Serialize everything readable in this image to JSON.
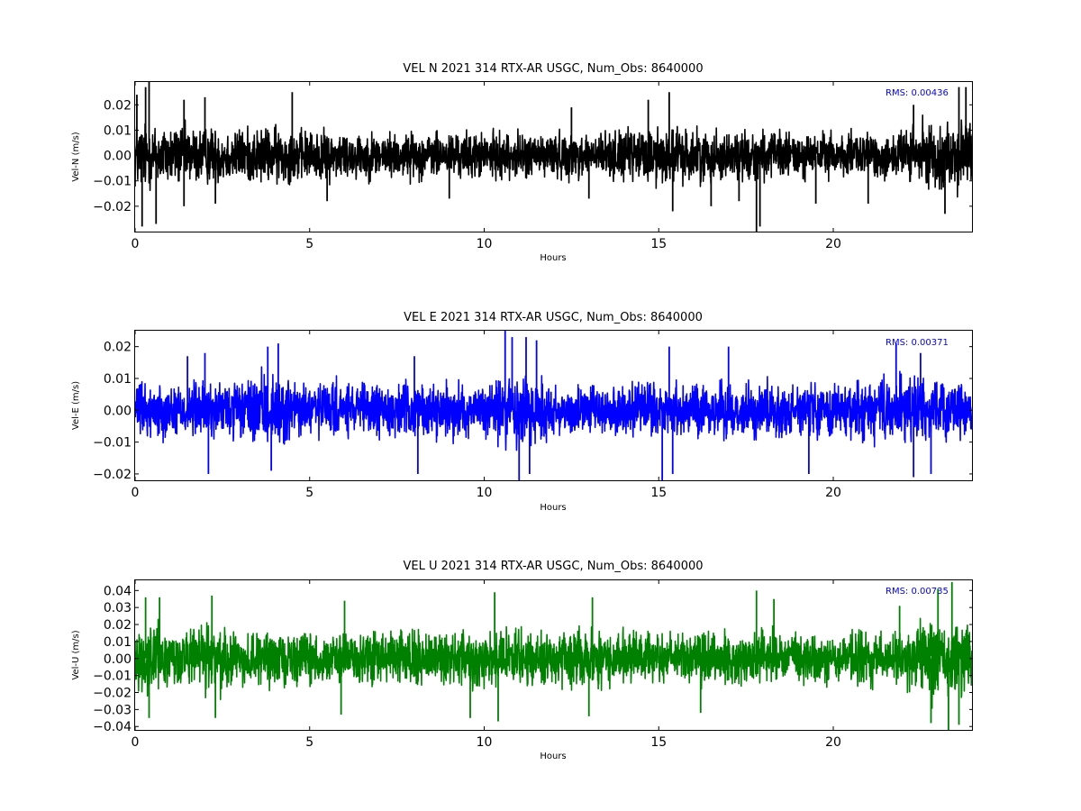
{
  "chart_data": [
    {
      "type": "line",
      "title": "VEL N 2021 314 RTX-AR  USGC, Num_Obs: 8640000",
      "xlabel": "Hours",
      "ylabel": "Vel-N (m/s)",
      "xlim": [
        0,
        24
      ],
      "ylim": [
        -0.03,
        0.029
      ],
      "xticks": [
        0,
        5,
        10,
        15,
        20
      ],
      "xtick_labels": [
        "0",
        "5",
        "10",
        "15",
        "20"
      ],
      "yticks": [
        -0.02,
        -0.01,
        0.0,
        0.01,
        0.02
      ],
      "ytick_labels": [
        "−0.02",
        "−0.01",
        "0.00",
        "0.01",
        "0.02"
      ],
      "annotation": "RMS:  0.00436",
      "annotation_color": "#0000ff",
      "grid": false,
      "legend": "none",
      "series": [
        {
          "color": "#000000",
          "envelope": [
            [
              0.0,
              0.019
            ],
            [
              0.5,
              0.017
            ],
            [
              1.0,
              0.016
            ],
            [
              2.0,
              0.015
            ],
            [
              3.0,
              0.014
            ],
            [
              4.0,
              0.015
            ],
            [
              5.0,
              0.013
            ],
            [
              6.0,
              0.013
            ],
            [
              7.0,
              0.012
            ],
            [
              8.0,
              0.012
            ],
            [
              9.0,
              0.012
            ],
            [
              10.0,
              0.012
            ],
            [
              11.0,
              0.012
            ],
            [
              12.0,
              0.012
            ],
            [
              13.0,
              0.012
            ],
            [
              14.0,
              0.013
            ],
            [
              15.0,
              0.016
            ],
            [
              16.0,
              0.014
            ],
            [
              17.0,
              0.013
            ],
            [
              18.0,
              0.013
            ],
            [
              19.0,
              0.012
            ],
            [
              20.0,
              0.012
            ],
            [
              21.0,
              0.012
            ],
            [
              22.0,
              0.014
            ],
            [
              23.0,
              0.017
            ],
            [
              24.0,
              0.019
            ]
          ],
          "peaks": [
            [
              0.05,
              0.024
            ],
            [
              0.2,
              -0.028
            ],
            [
              0.3,
              0.027
            ],
            [
              0.4,
              0.029
            ],
            [
              0.6,
              -0.027
            ],
            [
              1.4,
              0.022
            ],
            [
              1.4,
              -0.02
            ],
            [
              2.0,
              0.023
            ],
            [
              2.3,
              -0.019
            ],
            [
              4.5,
              0.025
            ],
            [
              5.5,
              -0.018
            ],
            [
              9.0,
              -0.017
            ],
            [
              12.5,
              0.019
            ],
            [
              13.0,
              -0.017
            ],
            [
              14.7,
              0.022
            ],
            [
              15.3,
              0.025
            ],
            [
              15.4,
              -0.022
            ],
            [
              16.5,
              -0.02
            ],
            [
              17.8,
              -0.03
            ],
            [
              17.9,
              -0.028
            ],
            [
              17.3,
              -0.018
            ],
            [
              19.5,
              -0.019
            ],
            [
              21.0,
              -0.019
            ],
            [
              22.3,
              0.02
            ],
            [
              23.2,
              -0.023
            ],
            [
              23.6,
              0.027
            ],
            [
              23.8,
              0.027
            ]
          ]
        }
      ]
    },
    {
      "type": "line",
      "title": "VEL E 2021 314 RTX-AR  USGC, Num_Obs: 8640000",
      "xlabel": "Hours",
      "ylabel": "Vel-E (m/s)",
      "xlim": [
        0,
        24
      ],
      "ylim": [
        -0.022,
        0.025
      ],
      "xticks": [
        0,
        5,
        10,
        15,
        20
      ],
      "xtick_labels": [
        "0",
        "5",
        "10",
        "15",
        "20"
      ],
      "yticks": [
        -0.02,
        -0.01,
        0.0,
        0.01,
        0.02
      ],
      "ytick_labels": [
        "−0.02",
        "−0.01",
        "0.00",
        "0.01",
        "0.02"
      ],
      "annotation": "RMS:  0.00371",
      "annotation_color": "#0000ff",
      "grid": false,
      "legend": "none",
      "series": [
        {
          "color": "#0000ff",
          "envelope": [
            [
              0.0,
              0.011
            ],
            [
              1.0,
              0.011
            ],
            [
              2.0,
              0.012
            ],
            [
              3.0,
              0.012
            ],
            [
              3.5,
              0.014
            ],
            [
              4.0,
              0.015
            ],
            [
              4.5,
              0.013
            ],
            [
              5.0,
              0.012
            ],
            [
              6.0,
              0.011
            ],
            [
              7.0,
              0.011
            ],
            [
              8.0,
              0.011
            ],
            [
              9.0,
              0.011
            ],
            [
              10.0,
              0.011
            ],
            [
              10.5,
              0.015
            ],
            [
              11.0,
              0.018
            ],
            [
              11.5,
              0.016
            ],
            [
              12.0,
              0.012
            ],
            [
              13.0,
              0.01
            ],
            [
              14.0,
              0.011
            ],
            [
              15.0,
              0.012
            ],
            [
              16.0,
              0.011
            ],
            [
              17.0,
              0.011
            ],
            [
              18.0,
              0.011
            ],
            [
              19.0,
              0.011
            ],
            [
              20.0,
              0.011
            ],
            [
              21.0,
              0.012
            ],
            [
              22.0,
              0.014
            ],
            [
              22.5,
              0.014
            ],
            [
              23.0,
              0.012
            ],
            [
              24.0,
              0.012
            ]
          ],
          "peaks": [
            [
              1.5,
              0.017
            ],
            [
              2.0,
              0.018
            ],
            [
              2.1,
              -0.02
            ],
            [
              3.8,
              0.02
            ],
            [
              4.1,
              0.021
            ],
            [
              3.9,
              -0.019
            ],
            [
              8.0,
              0.017
            ],
            [
              8.1,
              -0.02
            ],
            [
              10.6,
              0.025
            ],
            [
              10.8,
              0.023
            ],
            [
              11.0,
              -0.022
            ],
            [
              11.2,
              0.023
            ],
            [
              11.5,
              0.022
            ],
            [
              11.3,
              -0.02
            ],
            [
              15.3,
              0.02
            ],
            [
              15.4,
              -0.02
            ],
            [
              15.1,
              -0.022
            ],
            [
              17.0,
              0.02
            ],
            [
              19.3,
              -0.02
            ],
            [
              21.8,
              0.021
            ],
            [
              22.3,
              -0.021
            ],
            [
              22.5,
              0.018
            ],
            [
              22.8,
              -0.02
            ]
          ]
        }
      ]
    },
    {
      "type": "line",
      "title": "VEL U 2021 314 RTX-AR  USGC, Num_Obs: 8640000",
      "xlabel": "Hours",
      "ylabel": "Vel-U (m/s)",
      "xlim": [
        0,
        24
      ],
      "ylim": [
        -0.042,
        0.046
      ],
      "xticks": [
        0,
        5,
        10,
        15,
        20
      ],
      "xtick_labels": [
        "0",
        "5",
        "10",
        "15",
        "20"
      ],
      "yticks": [
        -0.04,
        -0.03,
        -0.02,
        -0.01,
        0.0,
        0.01,
        0.02,
        0.03,
        0.04
      ],
      "ytick_labels": [
        "−0.04",
        "−0.03",
        "−0.02",
        "−0.01",
        "0.00",
        "0.01",
        "0.02",
        "0.03",
        "0.04"
      ],
      "annotation": "RMS:  0.00735",
      "annotation_color": "#0000ff",
      "grid": false,
      "legend": "none",
      "series": [
        {
          "color": "#008000",
          "envelope": [
            [
              0.0,
              0.022
            ],
            [
              0.5,
              0.026
            ],
            [
              1.0,
              0.025
            ],
            [
              1.5,
              0.022
            ],
            [
              2.0,
              0.024
            ],
            [
              2.3,
              0.03
            ],
            [
              2.7,
              0.024
            ],
            [
              3.0,
              0.019
            ],
            [
              4.0,
              0.02
            ],
            [
              5.0,
              0.019
            ],
            [
              6.0,
              0.019
            ],
            [
              7.0,
              0.02
            ],
            [
              8.0,
              0.02
            ],
            [
              9.0,
              0.02
            ],
            [
              10.0,
              0.022
            ],
            [
              11.0,
              0.021
            ],
            [
              12.0,
              0.021
            ],
            [
              13.0,
              0.022
            ],
            [
              14.0,
              0.02
            ],
            [
              15.0,
              0.02
            ],
            [
              16.0,
              0.021
            ],
            [
              17.0,
              0.019
            ],
            [
              18.0,
              0.02
            ],
            [
              19.0,
              0.022
            ],
            [
              20.0,
              0.02
            ],
            [
              21.0,
              0.021
            ],
            [
              22.0,
              0.021
            ],
            [
              22.5,
              0.03
            ],
            [
              23.0,
              0.031
            ],
            [
              23.5,
              0.03
            ],
            [
              24.0,
              0.024
            ]
          ],
          "peaks": [
            [
              0.3,
              0.036
            ],
            [
              0.7,
              0.036
            ],
            [
              0.4,
              -0.035
            ],
            [
              2.2,
              0.037
            ],
            [
              2.3,
              -0.035
            ],
            [
              6.0,
              0.034
            ],
            [
              5.9,
              -0.033
            ],
            [
              9.6,
              -0.035
            ],
            [
              10.3,
              0.039
            ],
            [
              10.4,
              -0.037
            ],
            [
              13.1,
              0.036
            ],
            [
              13.0,
              -0.034
            ],
            [
              16.2,
              -0.032
            ],
            [
              17.8,
              0.04
            ],
            [
              18.3,
              0.035
            ],
            [
              21.9,
              0.031
            ],
            [
              22.8,
              -0.038
            ],
            [
              23.0,
              0.041
            ],
            [
              23.3,
              -0.042
            ],
            [
              23.4,
              0.045
            ],
            [
              23.6,
              -0.039
            ]
          ]
        }
      ]
    }
  ]
}
